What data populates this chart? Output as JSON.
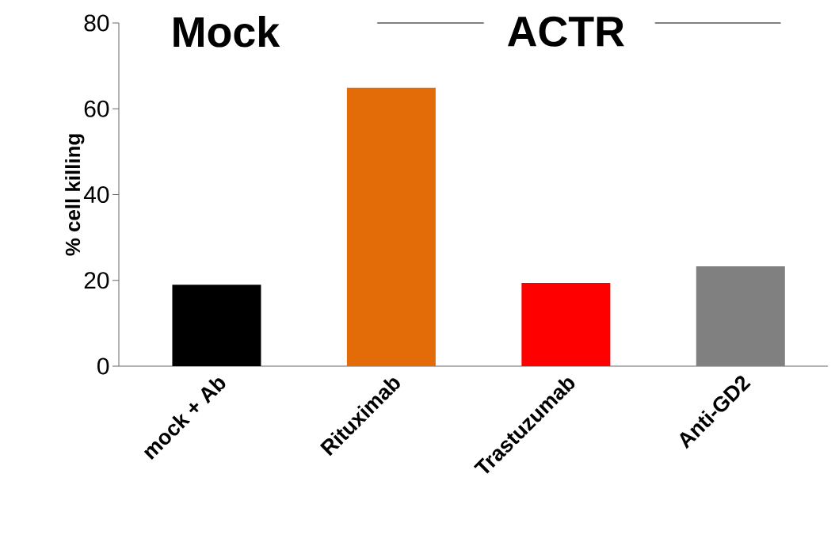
{
  "chart_data": {
    "type": "bar",
    "ylabel": "% cell killing",
    "categories": [
      "mock + Ab",
      "Rituximab",
      "Trastuzumab",
      "Anti-GD2"
    ],
    "values": [
      19.0,
      64.9,
      19.4,
      23.3
    ],
    "colors": [
      "#000000",
      "#e36c09",
      "#ff0000",
      "#808080"
    ],
    "ylim": [
      0,
      80
    ],
    "yticks": [
      0,
      20,
      40,
      60,
      80
    ],
    "grid": false,
    "annotations": [
      "Mock",
      "ACTR"
    ]
  }
}
